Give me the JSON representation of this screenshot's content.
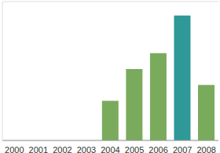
{
  "chart_data": {
    "type": "bar",
    "categories": [
      "2000",
      "2001",
      "2002",
      "2003",
      "2004",
      "2005",
      "2006",
      "2007",
      "2008"
    ],
    "values": [
      0,
      0,
      0,
      0,
      2,
      3.6,
      4.4,
      6.3,
      2.8
    ],
    "colors": [
      "#7aab5c",
      "#7aab5c",
      "#7aab5c",
      "#7aab5c",
      "#7aab5c",
      "#7aab5c",
      "#7aab5c",
      "#2e9996",
      "#7aab5c"
    ],
    "ylim": [
      0,
      7
    ],
    "yticks": [
      0,
      1,
      2,
      3,
      4,
      5,
      6,
      7
    ],
    "grid": true,
    "tick_labels": "x"
  }
}
